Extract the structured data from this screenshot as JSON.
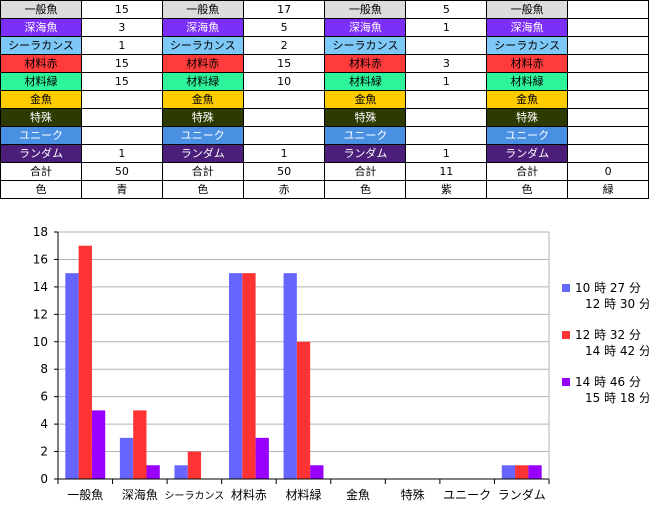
{
  "table": {
    "rows": [
      {
        "cls": "c-ippan",
        "cells": [
          "一般魚",
          "15",
          "一般魚",
          "17",
          "一般魚",
          "5",
          "一般魚",
          ""
        ]
      },
      {
        "cls": "c-shinkai",
        "cells": [
          "深海魚",
          "3",
          "深海魚",
          "5",
          "深海魚",
          "1",
          "深海魚",
          ""
        ]
      },
      {
        "cls": "c-coel",
        "cells": [
          "シーラカンス",
          "1",
          "シーラカンス",
          "2",
          "シーラカンス",
          "",
          "シーラカンス",
          ""
        ]
      },
      {
        "cls": "c-red",
        "cells": [
          "材料赤",
          "15",
          "材料赤",
          "15",
          "材料赤",
          "3",
          "材料赤",
          ""
        ]
      },
      {
        "cls": "c-green",
        "cells": [
          "材料緑",
          "15",
          "材料緑",
          "10",
          "材料緑",
          "1",
          "材料緑",
          ""
        ]
      },
      {
        "cls": "c-gold",
        "cells": [
          "金魚",
          "",
          "金魚",
          "",
          "金魚",
          "",
          "金魚",
          ""
        ]
      },
      {
        "cls": "c-special",
        "cells": [
          "特殊",
          "",
          "特殊",
          "",
          "特殊",
          "",
          "特殊",
          ""
        ]
      },
      {
        "cls": "c-unique",
        "cells": [
          "ユニーク",
          "",
          "ユニーク",
          "",
          "ユニーク",
          "",
          "ユニーク",
          ""
        ]
      },
      {
        "cls": "c-random",
        "cells": [
          "ランダム",
          "1",
          "ランダム",
          "1",
          "ランダム",
          "1",
          "ランダム",
          ""
        ]
      },
      {
        "cls": "c-plain",
        "cells": [
          "合計",
          "50",
          "合計",
          "50",
          "合計",
          "11",
          "合計",
          "0"
        ]
      },
      {
        "cls": "c-plain",
        "cells": [
          "色",
          "青",
          "色",
          "赤",
          "色",
          "紫",
          "色",
          "緑"
        ]
      }
    ]
  },
  "chart_data": {
    "type": "bar",
    "categories": [
      "一般魚",
      "深海魚",
      "シーラカンス",
      "材料赤",
      "材料緑",
      "金魚",
      "特殊",
      "ユニーク",
      "ランダム"
    ],
    "series": [
      {
        "name": "10 時 27 分\n12 時 30 分",
        "values": [
          15,
          3,
          1,
          15,
          15,
          0,
          0,
          0,
          1
        ],
        "color": "#6666ff"
      },
      {
        "name": "12 時 32 分\n14 時 42 分",
        "values": [
          17,
          5,
          2,
          15,
          10,
          0,
          0,
          0,
          1
        ],
        "color": "#ff3333"
      },
      {
        "name": "14 時 46 分\n15 時 18 分",
        "values": [
          5,
          1,
          0,
          3,
          1,
          0,
          0,
          0,
          1
        ],
        "color": "#9900ff"
      }
    ],
    "ylim": [
      0,
      18
    ],
    "yticks": [
      0,
      2,
      4,
      6,
      8,
      10,
      12,
      14,
      16,
      18
    ],
    "grid": true,
    "legend": "right",
    "title": "",
    "xlabel": "",
    "ylabel": ""
  }
}
